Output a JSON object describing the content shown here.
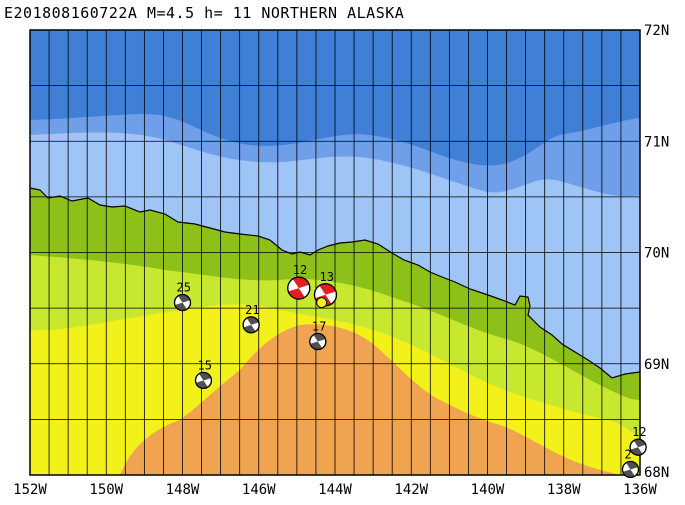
{
  "title": "E201808160722A M=4.5 h= 11 NORTHERN ALASKA",
  "map": {
    "lon_range": [
      -152,
      -136
    ],
    "lat_range": [
      68,
      72
    ],
    "lon_ticks": [
      {
        "value": -152,
        "label": "152W"
      },
      {
        "value": -150,
        "label": "150W"
      },
      {
        "value": -148,
        "label": "148W"
      },
      {
        "value": -146,
        "label": "146W"
      },
      {
        "value": -144,
        "label": "144W"
      },
      {
        "value": -142,
        "label": "142W"
      },
      {
        "value": -140,
        "label": "140W"
      },
      {
        "value": -138,
        "label": "138W"
      },
      {
        "value": -136,
        "label": "136W"
      }
    ],
    "lat_ticks": [
      {
        "value": 69,
        "label": "69N"
      },
      {
        "value": 70,
        "label": "70N"
      },
      {
        "value": 71,
        "label": "71N"
      },
      {
        "value": 72,
        "label": "72N"
      }
    ],
    "lat_ticks_bottom": {
      "value": 68,
      "label": "68N"
    },
    "colors": {
      "deep_sea": "#3f7fd6",
      "mid_sea": "#6f9fe9",
      "shallow_sea": "#9ec5f5",
      "low_land": "#8ec01a",
      "mid_land": "#c8e830",
      "high_land": "#f2f21a",
      "peak_land": "#f0a452",
      "grid": "#000000"
    },
    "events": [
      {
        "label": "25",
        "lon": -148.0,
        "lat": 69.55,
        "style": "gray"
      },
      {
        "label": "21",
        "lon": -146.2,
        "lat": 69.35,
        "style": "gray"
      },
      {
        "label": "17",
        "lon": -144.45,
        "lat": 69.2,
        "style": "gray"
      },
      {
        "label": "15",
        "lon": -147.45,
        "lat": 68.85,
        "style": "gray"
      },
      {
        "label": "12",
        "lon": -144.95,
        "lat": 69.68,
        "style": "red"
      },
      {
        "label": "13",
        "lon": -144.25,
        "lat": 69.62,
        "style": "red"
      },
      {
        "label": "12",
        "lon": -136.05,
        "lat": 68.25,
        "style": "gray"
      },
      {
        "label": "2",
        "lon": -136.25,
        "lat": 68.05,
        "style": "gray"
      }
    ]
  }
}
